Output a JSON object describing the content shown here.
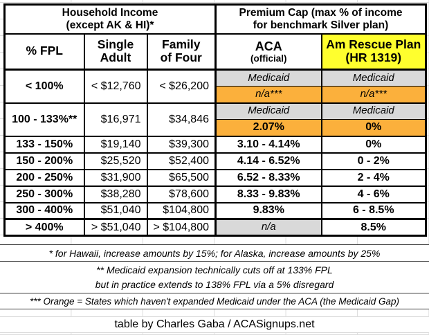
{
  "colors": {
    "arp_header_yellow": "#FFFF2E",
    "medicaid_gap_orange": "#FBB03C",
    "medicaid_gray": "#D9D9D9",
    "table_border": "#000000",
    "gridline": "#DCDCDC"
  },
  "chart_data": {
    "type": "table",
    "header_groups": [
      {
        "line1": "Household Income",
        "line2": "(except AK & HI)*",
        "span": 3
      },
      {
        "line1": "Premium Cap (max % of income",
        "line2": "for benchmark Silver plan)",
        "span": 2
      }
    ],
    "columns": [
      {
        "line1": "% FPL",
        "line2": ""
      },
      {
        "line1": "Single",
        "line2": "Adult"
      },
      {
        "line1": "Family",
        "line2": "of Four"
      },
      {
        "line1": "ACA",
        "line2": "(official)"
      },
      {
        "line1": "Am Rescue Plan",
        "line2": "(HR 1319)"
      }
    ],
    "rows": [
      {
        "fpl": "< 100%",
        "single": "< $12,760",
        "family": "< $26,200",
        "split": true,
        "aca_top": {
          "text": "Medicaid",
          "style": "medicaid"
        },
        "aca_bottom": {
          "text": "n/a***",
          "style": "orange_na"
        },
        "arp_top": {
          "text": "Medicaid",
          "style": "medicaid"
        },
        "arp_bottom": {
          "text": "n/a***",
          "style": "orange_na"
        }
      },
      {
        "fpl": "100 - 133%**",
        "single": "$16,971",
        "family": "$34,846",
        "split": true,
        "aca_top": {
          "text": "Medicaid",
          "style": "medicaid"
        },
        "aca_bottom": {
          "text": "2.07%",
          "style": "orange_pct"
        },
        "arp_top": {
          "text": "Medicaid",
          "style": "medicaid"
        },
        "arp_bottom": {
          "text": "0%",
          "style": "orange_pct"
        }
      },
      {
        "fpl": "133 - 150%",
        "single": "$19,140",
        "family": "$39,300",
        "aca": {
          "text": "3.10 - 4.14%",
          "style": "pct"
        },
        "arp": {
          "text": "0%",
          "style": "pct"
        }
      },
      {
        "fpl": "150 - 200%",
        "single": "$25,520",
        "family": "$52,400",
        "aca": {
          "text": "4.14 - 6.52%",
          "style": "pct"
        },
        "arp": {
          "text": "0 - 2%",
          "style": "pct"
        }
      },
      {
        "fpl": "200 - 250%",
        "single": "$31,900",
        "family": "$65,500",
        "aca": {
          "text": "6.52 - 8.33%",
          "style": "pct"
        },
        "arp": {
          "text": "2 - 4%",
          "style": "pct"
        }
      },
      {
        "fpl": "250 - 300%",
        "single": "$38,280",
        "family": "$78,600",
        "aca": {
          "text": "8.33 - 9.83%",
          "style": "pct"
        },
        "arp": {
          "text": "4 - 6%",
          "style": "pct"
        }
      },
      {
        "fpl": "300 - 400%",
        "single": "$51,040",
        "family": "$104,800",
        "aca": {
          "text": "9.83%",
          "style": "pct"
        },
        "arp": {
          "text": "6 - 8.5%",
          "style": "pct"
        }
      },
      {
        "fpl": "> 400%",
        "single": "> $51,040",
        "family": "> $104,800",
        "thick_top": true,
        "aca": {
          "text": "n/a",
          "style": "na_gray"
        },
        "arp": {
          "text": "8.5%",
          "style": "pct"
        }
      }
    ]
  },
  "footnotes": {
    "note1": "* for Hawaii, increase amounts by 15%; for Alaska, increase amounts by 25%",
    "note2_line1": "** Medicaid expansion technically cuts off at 133% FPL",
    "note2_line2": "but in practice extends to 138% FPL via a 5% disregard",
    "note3": "*** Orange = States which haven't expanded Medicaid under the ACA (the Medicaid Gap)"
  },
  "credit": "table by Charles Gaba / ACASignups.net"
}
